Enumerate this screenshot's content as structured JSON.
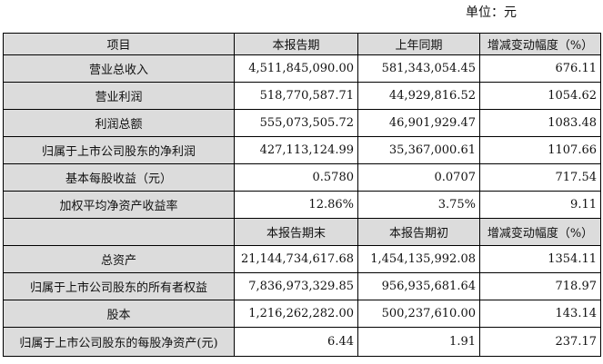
{
  "unit_label": "单位：元",
  "header": [
    "项目",
    "本报告期",
    "上年同期",
    "增减变动幅度（%）"
  ],
  "rows_a": [
    [
      "营业总收入",
      "4,511,845,090.00",
      "581,343,054.45",
      "676.11"
    ],
    [
      "营业利润",
      "518,770,587.71",
      "44,929,816.52",
      "1054.62"
    ],
    [
      "利润总额",
      "555,073,505.72",
      "46,901,929.47",
      "1083.48"
    ],
    [
      "归属于上市公司股东的净利润",
      "427,113,124.99",
      "35,367,000.61",
      "1107.66"
    ],
    [
      "基本每股收益（元）",
      "0.5780",
      "0.0707",
      "717.54"
    ],
    [
      "加权平均净资产收益率",
      "12.86%",
      "3.75%",
      "9.11"
    ]
  ],
  "subheader": [
    "",
    "本报告期末",
    "本报告期初",
    "增减变动幅度（%）"
  ],
  "rows_b": [
    [
      "总资产",
      "21,144,734,617.68",
      "1,454,135,992.08",
      "1354.11"
    ],
    [
      "归属于上市公司股东的所有者权益",
      "7,836,973,329.85",
      "956,935,681.64",
      "718.97"
    ],
    [
      "股本",
      "1,216,262,282.00",
      "500,237,610.00",
      "143.14"
    ],
    [
      "归属于上市公司股东的每股净资产(元)",
      "6.44",
      "1.91",
      "237.17"
    ]
  ]
}
